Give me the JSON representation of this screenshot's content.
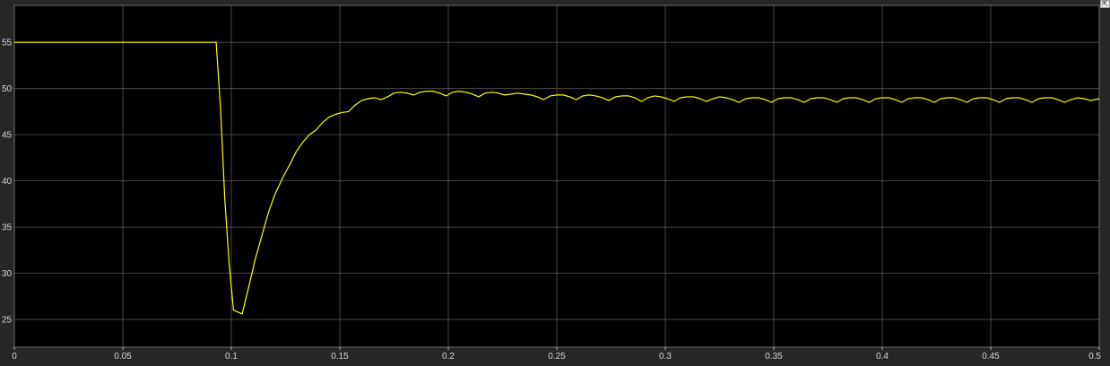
{
  "colors": {
    "background": "#000000",
    "frame": "#262626",
    "grid": "#5a5a5a",
    "signal": "#ffff00",
    "tick_text": "#d6d6d6"
  },
  "icons": {
    "corner": "expand-icon"
  },
  "chart_data": {
    "type": "line",
    "title": "",
    "xlabel": "",
    "ylabel": "",
    "xlim": [
      0,
      0.5
    ],
    "ylim": [
      22,
      59
    ],
    "grid": true,
    "legend": "none",
    "x_ticks": [
      0,
      0.05,
      0.1,
      0.15,
      0.2,
      0.25,
      0.3,
      0.35,
      0.4,
      0.45,
      0.5
    ],
    "x_tick_labels": [
      "0",
      "0.05",
      "0.1",
      "0.15",
      "0.2",
      "0.25",
      "0.3",
      "0.35",
      "0.4",
      "0.45",
      "0.5"
    ],
    "y_ticks": [
      25,
      30,
      35,
      40,
      45,
      50,
      55
    ],
    "y_tick_labels": [
      "25",
      "30",
      "35",
      "40",
      "45",
      "50",
      "55"
    ],
    "series": [
      {
        "color": "#ffff00",
        "points": [
          [
            0,
            55
          ],
          [
            0.093,
            55
          ],
          [
            0.095,
            48
          ],
          [
            0.097,
            38
          ],
          [
            0.099,
            31
          ],
          [
            0.101,
            26
          ],
          [
            0.105,
            25.6
          ],
          [
            0.108,
            28.5
          ],
          [
            0.111,
            31.5
          ],
          [
            0.114,
            34
          ],
          [
            0.117,
            36.5
          ],
          [
            0.12,
            38.5
          ],
          [
            0.124,
            40.5
          ],
          [
            0.127,
            41.8
          ],
          [
            0.13,
            43.2
          ],
          [
            0.133,
            44.2
          ],
          [
            0.136,
            45
          ],
          [
            0.139,
            45.5
          ],
          [
            0.142,
            46.3
          ],
          [
            0.145,
            46.9
          ],
          [
            0.148,
            47.2
          ],
          [
            0.151,
            47.4
          ],
          [
            0.154,
            47.5
          ],
          [
            0.157,
            48.2
          ],
          [
            0.16,
            48.7
          ],
          [
            0.163,
            48.9
          ],
          [
            0.166,
            49
          ],
          [
            0.169,
            48.8
          ],
          [
            0.172,
            49.1
          ],
          [
            0.175,
            49.5
          ],
          [
            0.178,
            49.6
          ],
          [
            0.181,
            49.5
          ],
          [
            0.184,
            49.3
          ],
          [
            0.187,
            49.6
          ],
          [
            0.19,
            49.7
          ],
          [
            0.193,
            49.7
          ],
          [
            0.196,
            49.5
          ],
          [
            0.199,
            49.2
          ],
          [
            0.202,
            49.6
          ],
          [
            0.205,
            49.7
          ],
          [
            0.208,
            49.6
          ],
          [
            0.211,
            49.4
          ],
          [
            0.214,
            49.1
          ],
          [
            0.217,
            49.5
          ],
          [
            0.22,
            49.6
          ],
          [
            0.223,
            49.5
          ],
          [
            0.226,
            49.3
          ],
          [
            0.229,
            49.4
          ],
          [
            0.232,
            49.5
          ],
          [
            0.235,
            49.4
          ],
          [
            0.238,
            49.3
          ],
          [
            0.241,
            49.1
          ],
          [
            0.244,
            48.8
          ],
          [
            0.247,
            49.2
          ],
          [
            0.25,
            49.3
          ],
          [
            0.253,
            49.3
          ],
          [
            0.256,
            49.1
          ],
          [
            0.259,
            48.8
          ],
          [
            0.262,
            49.2
          ],
          [
            0.265,
            49.3
          ],
          [
            0.268,
            49.2
          ],
          [
            0.271,
            49
          ],
          [
            0.274,
            48.7
          ],
          [
            0.277,
            49.1
          ],
          [
            0.28,
            49.2
          ],
          [
            0.283,
            49.2
          ],
          [
            0.286,
            49
          ],
          [
            0.289,
            48.6
          ],
          [
            0.292,
            49
          ],
          [
            0.295,
            49.2
          ],
          [
            0.298,
            49.1
          ],
          [
            0.301,
            48.9
          ],
          [
            0.304,
            48.6
          ],
          [
            0.307,
            49
          ],
          [
            0.31,
            49.1
          ],
          [
            0.313,
            49.1
          ],
          [
            0.316,
            48.9
          ],
          [
            0.319,
            48.6
          ],
          [
            0.322,
            48.9
          ],
          [
            0.325,
            49.1
          ],
          [
            0.328,
            49
          ],
          [
            0.331,
            48.8
          ],
          [
            0.334,
            48.5
          ],
          [
            0.337,
            48.9
          ],
          [
            0.34,
            49
          ],
          [
            0.343,
            49
          ],
          [
            0.346,
            48.8
          ],
          [
            0.349,
            48.5
          ],
          [
            0.352,
            48.9
          ],
          [
            0.355,
            49
          ],
          [
            0.358,
            49
          ],
          [
            0.361,
            48.8
          ],
          [
            0.364,
            48.5
          ],
          [
            0.367,
            48.9
          ],
          [
            0.37,
            49
          ],
          [
            0.373,
            49
          ],
          [
            0.376,
            48.8
          ],
          [
            0.379,
            48.5
          ],
          [
            0.382,
            48.9
          ],
          [
            0.385,
            49
          ],
          [
            0.388,
            49
          ],
          [
            0.391,
            48.8
          ],
          [
            0.394,
            48.5
          ],
          [
            0.397,
            48.9
          ],
          [
            0.4,
            49
          ],
          [
            0.403,
            49
          ],
          [
            0.406,
            48.8
          ],
          [
            0.409,
            48.5
          ],
          [
            0.412,
            48.9
          ],
          [
            0.415,
            49
          ],
          [
            0.418,
            49
          ],
          [
            0.421,
            48.8
          ],
          [
            0.424,
            48.5
          ],
          [
            0.427,
            48.9
          ],
          [
            0.43,
            49
          ],
          [
            0.433,
            49
          ],
          [
            0.436,
            48.8
          ],
          [
            0.439,
            48.5
          ],
          [
            0.442,
            48.9
          ],
          [
            0.445,
            49
          ],
          [
            0.448,
            49
          ],
          [
            0.451,
            48.8
          ],
          [
            0.454,
            48.5
          ],
          [
            0.457,
            48.9
          ],
          [
            0.46,
            49
          ],
          [
            0.463,
            49
          ],
          [
            0.466,
            48.8
          ],
          [
            0.469,
            48.5
          ],
          [
            0.472,
            48.9
          ],
          [
            0.475,
            49
          ],
          [
            0.478,
            49
          ],
          [
            0.481,
            48.8
          ],
          [
            0.484,
            48.5
          ],
          [
            0.487,
            48.8
          ],
          [
            0.49,
            49
          ],
          [
            0.493,
            48.9
          ],
          [
            0.496,
            48.7
          ],
          [
            0.5,
            48.9
          ]
        ]
      }
    ]
  }
}
